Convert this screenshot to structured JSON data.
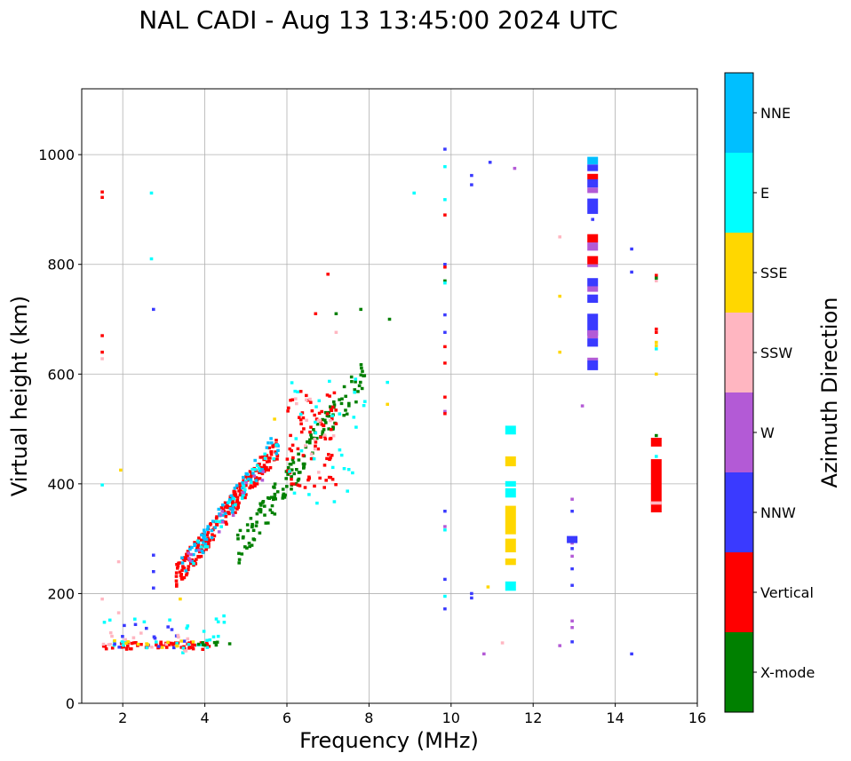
{
  "chart_data": {
    "type": "scatter",
    "title": "NAL CADI - Aug 13 13:45:00 2024 UTC",
    "xlabel": "Frequency (MHz)",
    "ylabel": "Virtual height (km)",
    "xlim": [
      1,
      16
    ],
    "ylim": [
      0,
      1120
    ],
    "xticks": [
      2,
      4,
      6,
      8,
      10,
      12,
      14,
      16
    ],
    "yticks": [
      0,
      200,
      400,
      600,
      800,
      1000
    ],
    "grid": true,
    "colorbar": {
      "label": "Azimuth Direction",
      "categories": [
        {
          "name": "X-mode",
          "color": "#008000"
        },
        {
          "name": "Vertical",
          "color": "#ff0000"
        },
        {
          "name": "NNW",
          "color": "#3a3aff"
        },
        {
          "name": "W",
          "color": "#b35ad6"
        },
        {
          "name": "SSW",
          "color": "#ffb6c1"
        },
        {
          "name": "SSE",
          "color": "#ffd700"
        },
        {
          "name": "E",
          "color": "#00ffff"
        },
        {
          "name": "NNE",
          "color": "#00bfff"
        }
      ]
    },
    "clusters": [
      {
        "cat": "Vertical",
        "f": [
          3.3,
          5.8
        ],
        "h": [
          230,
          470
        ],
        "n": 210,
        "trend": true
      },
      {
        "cat": "NNE",
        "f": [
          3.4,
          5.8
        ],
        "h": [
          240,
          480
        ],
        "n": 70,
        "trend": true
      },
      {
        "cat": "E",
        "f": [
          3.5,
          5.9
        ],
        "h": [
          250,
          480
        ],
        "n": 25,
        "trend": true
      },
      {
        "cat": "W",
        "f": [
          3.6,
          5.6
        ],
        "h": [
          260,
          440
        ],
        "n": 15,
        "trend": true
      },
      {
        "cat": "X-mode",
        "f": [
          4.8,
          7.9
        ],
        "h": [
          280,
          600
        ],
        "n": 150,
        "trend": true
      },
      {
        "cat": "Vertical",
        "f": [
          6.0,
          7.2
        ],
        "h": [
          380,
          570
        ],
        "n": 80,
        "trend": false
      },
      {
        "cat": "E",
        "f": [
          6.0,
          7.9
        ],
        "h": [
          360,
          600
        ],
        "n": 30,
        "trend": false
      },
      {
        "cat": "SSW",
        "f": [
          6.2,
          7.2
        ],
        "h": [
          380,
          560
        ],
        "n": 15,
        "trend": false
      },
      {
        "cat": "Vertical",
        "f": [
          1.5,
          4.2
        ],
        "h": [
          98,
          112
        ],
        "n": 60,
        "trend": false
      },
      {
        "cat": "E",
        "f": [
          1.5,
          4.5
        ],
        "h": [
          92,
          160
        ],
        "n": 30,
        "trend": false
      },
      {
        "cat": "NNW",
        "f": [
          1.5,
          3.8
        ],
        "h": [
          95,
          150
        ],
        "n": 15,
        "trend": false
      },
      {
        "cat": "SSW",
        "f": [
          1.5,
          3.6
        ],
        "h": [
          95,
          130
        ],
        "n": 15,
        "trend": false
      },
      {
        "cat": "SSE",
        "f": [
          1.7,
          3.9
        ],
        "h": [
          100,
          115
        ],
        "n": 12,
        "trend": false
      },
      {
        "cat": "X-mode",
        "f": [
          3.6,
          4.7
        ],
        "h": [
          105,
          112
        ],
        "n": 8,
        "trend": false
      }
    ],
    "points": [
      {
        "cat": "Vertical",
        "f": 1.5,
        "h": 922
      },
      {
        "cat": "Vertical",
        "f": 1.5,
        "h": 932
      },
      {
        "cat": "Vertical",
        "f": 1.5,
        "h": 670
      },
      {
        "cat": "Vertical",
        "f": 1.5,
        "h": 640
      },
      {
        "cat": "SSW",
        "f": 1.5,
        "h": 628
      },
      {
        "cat": "E",
        "f": 2.7,
        "h": 930
      },
      {
        "cat": "E",
        "f": 2.7,
        "h": 810
      },
      {
        "cat": "NNW",
        "f": 2.75,
        "h": 718
      },
      {
        "cat": "SSE",
        "f": 1.95,
        "h": 425
      },
      {
        "cat": "E",
        "f": 1.5,
        "h": 398
      },
      {
        "cat": "NNW",
        "f": 2.75,
        "h": 270
      },
      {
        "cat": "NNW",
        "f": 2.75,
        "h": 240
      },
      {
        "cat": "NNW",
        "f": 2.75,
        "h": 210
      },
      {
        "cat": "SSW",
        "f": 1.9,
        "h": 258
      },
      {
        "cat": "SSW",
        "f": 1.9,
        "h": 165
      },
      {
        "cat": "SSW",
        "f": 1.5,
        "h": 190
      },
      {
        "cat": "SSE",
        "f": 3.4,
        "h": 190
      },
      {
        "cat": "Vertical",
        "f": 7.0,
        "h": 782
      },
      {
        "cat": "Vertical",
        "f": 6.7,
        "h": 710
      },
      {
        "cat": "X-mode",
        "f": 7.2,
        "h": 710
      },
      {
        "cat": "X-mode",
        "f": 7.8,
        "h": 718
      },
      {
        "cat": "X-mode",
        "f": 8.5,
        "h": 700
      },
      {
        "cat": "SSW",
        "f": 7.2,
        "h": 676
      },
      {
        "cat": "E",
        "f": 8.45,
        "h": 585
      },
      {
        "cat": "SSE",
        "f": 8.45,
        "h": 545
      },
      {
        "cat": "E",
        "f": 7.9,
        "h": 550
      },
      {
        "cat": "SSE",
        "f": 5.7,
        "h": 518
      },
      {
        "cat": "E",
        "f": 7.6,
        "h": 420
      },
      {
        "cat": "E",
        "f": 9.1,
        "h": 930
      },
      {
        "cat": "NNW",
        "f": 9.85,
        "h": 1010
      },
      {
        "cat": "E",
        "f": 9.85,
        "h": 978
      },
      {
        "cat": "E",
        "f": 9.85,
        "h": 918
      },
      {
        "cat": "Vertical",
        "f": 9.85,
        "h": 890
      },
      {
        "cat": "NNW",
        "f": 9.85,
        "h": 800
      },
      {
        "cat": "Vertical",
        "f": 9.85,
        "h": 795
      },
      {
        "cat": "X-mode",
        "f": 9.85,
        "h": 770
      },
      {
        "cat": "E",
        "f": 9.85,
        "h": 766
      },
      {
        "cat": "NNW",
        "f": 9.85,
        "h": 708
      },
      {
        "cat": "NNW",
        "f": 9.85,
        "h": 676
      },
      {
        "cat": "Vertical",
        "f": 9.85,
        "h": 650
      },
      {
        "cat": "Vertical",
        "f": 9.85,
        "h": 620
      },
      {
        "cat": "Vertical",
        "f": 9.85,
        "h": 558
      },
      {
        "cat": "W",
        "f": 9.85,
        "h": 532
      },
      {
        "cat": "Vertical",
        "f": 9.85,
        "h": 528
      },
      {
        "cat": "NNW",
        "f": 9.85,
        "h": 350
      },
      {
        "cat": "W",
        "f": 9.85,
        "h": 322
      },
      {
        "cat": "E",
        "f": 9.85,
        "h": 316
      },
      {
        "cat": "NNW",
        "f": 9.85,
        "h": 226
      },
      {
        "cat": "E",
        "f": 9.85,
        "h": 195
      },
      {
        "cat": "NNW",
        "f": 9.85,
        "h": 172
      },
      {
        "cat": "NNW",
        "f": 10.5,
        "h": 962
      },
      {
        "cat": "NNW",
        "f": 10.5,
        "h": 945
      },
      {
        "cat": "NNW",
        "f": 10.95,
        "h": 986
      },
      {
        "cat": "W",
        "f": 11.55,
        "h": 975
      },
      {
        "cat": "NNW",
        "f": 10.5,
        "h": 200
      },
      {
        "cat": "NNW",
        "f": 10.5,
        "h": 192
      },
      {
        "cat": "SSE",
        "f": 10.9,
        "h": 212
      },
      {
        "cat": "W",
        "f": 10.8,
        "h": 90
      },
      {
        "cat": "SSW",
        "f": 11.25,
        "h": 110
      },
      {
        "cat": "SSW",
        "f": 12.65,
        "h": 850
      },
      {
        "cat": "SSE",
        "f": 12.65,
        "h": 742
      },
      {
        "cat": "SSE",
        "f": 12.65,
        "h": 640
      },
      {
        "cat": "W",
        "f": 12.65,
        "h": 105
      },
      {
        "cat": "W",
        "f": 12.95,
        "h": 372
      },
      {
        "cat": "NNW",
        "f": 12.95,
        "h": 350
      },
      {
        "cat": "NNW",
        "f": 12.95,
        "h": 300
      },
      {
        "cat": "W",
        "f": 12.95,
        "h": 292
      },
      {
        "cat": "NNW",
        "f": 12.95,
        "h": 282
      },
      {
        "cat": "W",
        "f": 12.95,
        "h": 268
      },
      {
        "cat": "NNW",
        "f": 12.95,
        "h": 245
      },
      {
        "cat": "NNW",
        "f": 12.95,
        "h": 215
      },
      {
        "cat": "W",
        "f": 12.95,
        "h": 150
      },
      {
        "cat": "W",
        "f": 12.95,
        "h": 138
      },
      {
        "cat": "NNW",
        "f": 12.95,
        "h": 112
      },
      {
        "cat": "W",
        "f": 13.2,
        "h": 542
      },
      {
        "cat": "NNW",
        "f": 13.45,
        "h": 882
      },
      {
        "cat": "NNW",
        "f": 14.4,
        "h": 828
      },
      {
        "cat": "NNW",
        "f": 14.4,
        "h": 786
      },
      {
        "cat": "NNW",
        "f": 14.4,
        "h": 90
      },
      {
        "cat": "SSW",
        "f": 15.0,
        "h": 770
      },
      {
        "cat": "Vertical",
        "f": 15.0,
        "h": 780
      },
      {
        "cat": "X-mode",
        "f": 15.0,
        "h": 775
      },
      {
        "cat": "Vertical",
        "f": 15.0,
        "h": 682
      },
      {
        "cat": "Vertical",
        "f": 15.0,
        "h": 676
      },
      {
        "cat": "SSE",
        "f": 15.0,
        "h": 658
      },
      {
        "cat": "SSE",
        "f": 15.0,
        "h": 652
      },
      {
        "cat": "E",
        "f": 15.0,
        "h": 646
      },
      {
        "cat": "SSE",
        "f": 15.0,
        "h": 600
      },
      {
        "cat": "X-mode",
        "f": 15.0,
        "h": 488
      },
      {
        "cat": "E",
        "f": 15.0,
        "h": 450
      },
      {
        "cat": "E",
        "f": 15.0,
        "h": 368
      }
    ],
    "bars": [
      {
        "cat": "NNE",
        "f": 13.45,
        "h0": 982,
        "h1": 996
      },
      {
        "cat": "NNW",
        "f": 13.45,
        "h0": 970,
        "h1": 982
      },
      {
        "cat": "Vertical",
        "f": 13.45,
        "h0": 955,
        "h1": 965
      },
      {
        "cat": "NNW",
        "f": 13.45,
        "h0": 940,
        "h1": 955
      },
      {
        "cat": "W",
        "f": 13.45,
        "h0": 930,
        "h1": 940
      },
      {
        "cat": "NNW",
        "f": 13.45,
        "h0": 892,
        "h1": 920
      },
      {
        "cat": "Vertical",
        "f": 13.45,
        "h0": 840,
        "h1": 855
      },
      {
        "cat": "W",
        "f": 13.45,
        "h0": 825,
        "h1": 840
      },
      {
        "cat": "Vertical",
        "f": 13.45,
        "h0": 800,
        "h1": 815
      },
      {
        "cat": "W",
        "f": 13.45,
        "h0": 795,
        "h1": 800
      },
      {
        "cat": "NNW",
        "f": 13.45,
        "h0": 760,
        "h1": 775
      },
      {
        "cat": "W",
        "f": 13.45,
        "h0": 750,
        "h1": 760
      },
      {
        "cat": "NNW",
        "f": 13.45,
        "h0": 730,
        "h1": 745
      },
      {
        "cat": "NNW",
        "f": 13.45,
        "h0": 670,
        "h1": 710
      },
      {
        "cat": "W",
        "f": 13.45,
        "h0": 665,
        "h1": 680
      },
      {
        "cat": "NNW",
        "f": 13.45,
        "h0": 650,
        "h1": 665
      },
      {
        "cat": "W",
        "f": 13.45,
        "h0": 625,
        "h1": 630
      },
      {
        "cat": "NNW",
        "f": 13.45,
        "h0": 607,
        "h1": 625
      },
      {
        "cat": "NNW",
        "f": 12.95,
        "h0": 292,
        "h1": 305
      },
      {
        "cat": "E",
        "f": 11.45,
        "h0": 490,
        "h1": 506
      },
      {
        "cat": "SSE",
        "f": 11.45,
        "h0": 432,
        "h1": 450
      },
      {
        "cat": "E",
        "f": 11.45,
        "h0": 395,
        "h1": 405
      },
      {
        "cat": "E",
        "f": 11.45,
        "h0": 375,
        "h1": 392
      },
      {
        "cat": "SSE",
        "f": 11.45,
        "h0": 308,
        "h1": 360
      },
      {
        "cat": "SSE",
        "f": 11.45,
        "h0": 275,
        "h1": 300
      },
      {
        "cat": "SSE",
        "f": 11.45,
        "h0": 252,
        "h1": 264
      },
      {
        "cat": "E",
        "f": 11.45,
        "h0": 205,
        "h1": 222
      },
      {
        "cat": "Vertical",
        "f": 15.0,
        "h0": 348,
        "h1": 445
      },
      {
        "cat": "Vertical",
        "f": 15.0,
        "h0": 468,
        "h1": 484
      },
      {
        "cat": "SSW",
        "f": 15.0,
        "h0": 362,
        "h1": 368
      }
    ]
  }
}
